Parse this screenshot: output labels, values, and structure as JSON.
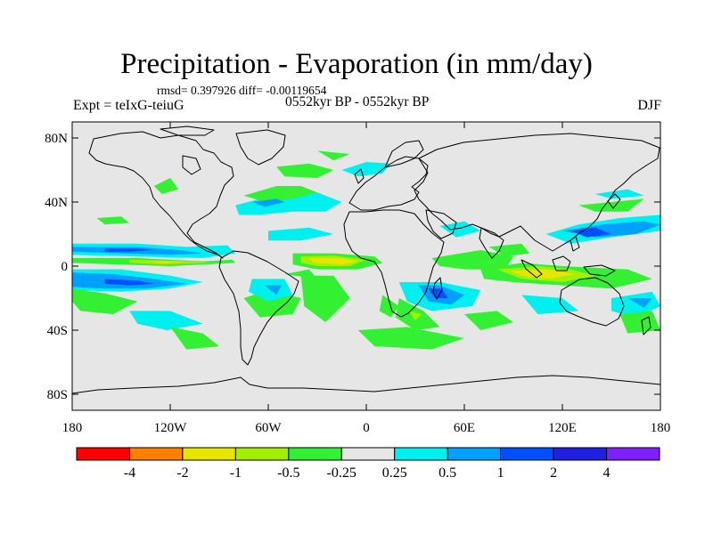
{
  "title": "Precipitation - Evaporation (in mm/day)",
  "stats_text": "rmsd= 0.397926 diff= -0.00119654",
  "experiment_label": "Expt = teIxG-teiuG",
  "period_label": "0552kyr BP - 0552kyr BP",
  "season_label": "DJF",
  "map": {
    "projection": "cylindrical equidistant",
    "lon_range": [
      -180,
      180
    ],
    "lat_range": [
      -90,
      90
    ],
    "ocean_background": "#e6e6e6",
    "coastline_color": "#000000",
    "lat_ticks": [
      {
        "value": 80,
        "label": "80N"
      },
      {
        "value": 40,
        "label": "40N"
      },
      {
        "value": 0,
        "label": "0"
      },
      {
        "value": -40,
        "label": "40S"
      },
      {
        "value": -80,
        "label": "80S"
      }
    ],
    "lon_ticks": [
      {
        "value": -180,
        "label": "180"
      },
      {
        "value": -120,
        "label": "120W"
      },
      {
        "value": -60,
        "label": "60W"
      },
      {
        "value": 0,
        "label": "0"
      },
      {
        "value": 60,
        "label": "60E"
      },
      {
        "value": 120,
        "label": "120E"
      },
      {
        "value": 180,
        "label": "180"
      }
    ]
  },
  "colorbar": {
    "colors": [
      "#ff0000",
      "#ff8000",
      "#e6e600",
      "#a0f000",
      "#33f033",
      "#e6e6e6",
      "#00f0f0",
      "#00a0ff",
      "#0050ff",
      "#2020e0",
      "#8020ff"
    ],
    "labels": [
      "-4",
      "-2",
      "-1",
      "-0.5",
      "-0.25",
      "0.25",
      "0.5",
      "1",
      "2",
      "4"
    ]
  },
  "field_regions": [
    {
      "color": "#00f0f0",
      "points": [
        [
          -180,
          14
        ],
        [
          -140,
          14
        ],
        [
          -110,
          12
        ],
        [
          -85,
          13
        ],
        [
          -80,
          8
        ],
        [
          -100,
          5
        ],
        [
          -140,
          6
        ],
        [
          -180,
          7
        ]
      ]
    },
    {
      "color": "#00a0ff",
      "points": [
        [
          -180,
          12
        ],
        [
          -140,
          12
        ],
        [
          -115,
          10
        ],
        [
          -100,
          8
        ],
        [
          -120,
          7
        ],
        [
          -150,
          8
        ],
        [
          -180,
          9
        ]
      ]
    },
    {
      "color": "#0050ff",
      "points": [
        [
          -160,
          11
        ],
        [
          -140,
          11
        ],
        [
          -130,
          10
        ],
        [
          -145,
          9
        ],
        [
          -160,
          9
        ]
      ]
    },
    {
      "color": "#33f033",
      "points": [
        [
          -180,
          5
        ],
        [
          -140,
          5
        ],
        [
          -100,
          3
        ],
        [
          -82,
          4
        ],
        [
          -80,
          2
        ],
        [
          -120,
          0
        ],
        [
          -150,
          1
        ],
        [
          -180,
          2
        ]
      ]
    },
    {
      "color": "#a0f000",
      "points": [
        [
          -145,
          4
        ],
        [
          -105,
          3
        ],
        [
          -95,
          2
        ],
        [
          -125,
          1
        ],
        [
          -145,
          2
        ]
      ]
    },
    {
      "color": "#e6e600",
      "points": [
        [
          -135,
          3.2
        ],
        [
          -110,
          2.6
        ],
        [
          -125,
          1.8
        ]
      ]
    },
    {
      "color": "#00f0f0",
      "points": [
        [
          -180,
          -2
        ],
        [
          -150,
          -2
        ],
        [
          -120,
          -6
        ],
        [
          -100,
          -10
        ],
        [
          -90,
          -8
        ],
        [
          -120,
          -14
        ],
        [
          -150,
          -16
        ],
        [
          -180,
          -15
        ]
      ]
    },
    {
      "color": "#00a0ff",
      "points": [
        [
          -180,
          -4
        ],
        [
          -155,
          -5
        ],
        [
          -130,
          -8
        ],
        [
          -110,
          -11
        ],
        [
          -135,
          -14
        ],
        [
          -160,
          -14
        ],
        [
          -180,
          -13
        ]
      ]
    },
    {
      "color": "#0050ff",
      "points": [
        [
          -160,
          -8
        ],
        [
          -140,
          -9
        ],
        [
          -130,
          -11
        ],
        [
          -145,
          -12
        ],
        [
          -160,
          -11
        ]
      ]
    },
    {
      "color": "#33f033",
      "points": [
        [
          -180,
          -14
        ],
        [
          -160,
          -17
        ],
        [
          -140,
          -22
        ],
        [
          -155,
          -30
        ],
        [
          -175,
          -28
        ],
        [
          -180,
          -22
        ]
      ]
    },
    {
      "color": "#00f0f0",
      "points": [
        [
          -145,
          -28
        ],
        [
          -120,
          -28
        ],
        [
          -100,
          -36
        ],
        [
          -122,
          -40
        ],
        [
          -140,
          -36
        ]
      ]
    },
    {
      "color": "#33f033",
      "points": [
        [
          -120,
          -38
        ],
        [
          -100,
          -42
        ],
        [
          -90,
          -50
        ],
        [
          -110,
          -52
        ]
      ]
    },
    {
      "color": "#33f033",
      "points": [
        [
          -165,
          30
        ],
        [
          -150,
          31
        ],
        [
          -145,
          27
        ],
        [
          -160,
          26
        ]
      ]
    },
    {
      "color": "#33f033",
      "points": [
        [
          -130,
          50
        ],
        [
          -120,
          55
        ],
        [
          -115,
          48
        ],
        [
          -125,
          45
        ]
      ]
    },
    {
      "color": "#00f0f0",
      "points": [
        [
          -80,
          38
        ],
        [
          -65,
          42
        ],
        [
          -50,
          44
        ],
        [
          -30,
          46
        ],
        [
          -15,
          40
        ],
        [
          -25,
          34
        ],
        [
          -45,
          34
        ],
        [
          -65,
          32
        ],
        [
          -78,
          32
        ]
      ]
    },
    {
      "color": "#33f033",
      "points": [
        [
          -75,
          44
        ],
        [
          -55,
          50
        ],
        [
          -40,
          50
        ],
        [
          -30,
          46
        ],
        [
          -45,
          42
        ],
        [
          -62,
          40
        ]
      ]
    },
    {
      "color": "#00a0ff",
      "points": [
        [
          -70,
          40
        ],
        [
          -55,
          42
        ],
        [
          -50,
          40
        ],
        [
          -62,
          37
        ]
      ]
    },
    {
      "color": "#33f033",
      "points": [
        [
          -55,
          62
        ],
        [
          -35,
          64
        ],
        [
          -20,
          60
        ],
        [
          -30,
          55
        ],
        [
          -50,
          56
        ]
      ]
    },
    {
      "color": "#00f0f0",
      "points": [
        [
          -15,
          60
        ],
        [
          0,
          65
        ],
        [
          15,
          64
        ],
        [
          10,
          58
        ],
        [
          -5,
          56
        ]
      ]
    },
    {
      "color": "#33f033",
      "points": [
        [
          -30,
          72
        ],
        [
          -10,
          70
        ],
        [
          -20,
          66
        ]
      ]
    },
    {
      "color": "#00f0f0",
      "points": [
        [
          -60,
          22
        ],
        [
          -35,
          24
        ],
        [
          -20,
          20
        ],
        [
          -40,
          16
        ],
        [
          -60,
          16
        ]
      ]
    },
    {
      "color": "#33f033",
      "points": [
        [
          -45,
          8
        ],
        [
          -20,
          8
        ],
        [
          5,
          6
        ],
        [
          10,
          2
        ],
        [
          -5,
          -2
        ],
        [
          -30,
          -2
        ],
        [
          -45,
          1
        ]
      ]
    },
    {
      "color": "#a0f000",
      "points": [
        [
          -40,
          6
        ],
        [
          -20,
          6.5
        ],
        [
          0,
          4
        ],
        [
          -10,
          0
        ],
        [
          -30,
          0
        ],
        [
          -40,
          2
        ]
      ]
    },
    {
      "color": "#e6e600",
      "points": [
        [
          -35,
          5
        ],
        [
          -15,
          5
        ],
        [
          -5,
          3
        ],
        [
          -15,
          1
        ],
        [
          -32,
          2
        ]
      ]
    },
    {
      "color": "#33f033",
      "points": [
        [
          -40,
          -6
        ],
        [
          -20,
          -6
        ],
        [
          -10,
          -20
        ],
        [
          -25,
          -35
        ],
        [
          -38,
          -25
        ]
      ]
    },
    {
      "color": "#33f033",
      "points": [
        [
          -50,
          -5
        ],
        [
          -35,
          -2
        ],
        [
          -30,
          -8
        ]
      ]
    },
    {
      "color": "#33f033",
      "points": [
        [
          -75,
          -20
        ],
        [
          -60,
          -15
        ],
        [
          -40,
          -20
        ],
        [
          -45,
          -30
        ],
        [
          -65,
          -32
        ]
      ]
    },
    {
      "color": "#00f0f0",
      "points": [
        [
          -70,
          -8
        ],
        [
          -50,
          -8
        ],
        [
          -45,
          -18
        ],
        [
          -60,
          -22
        ],
        [
          -72,
          -16
        ]
      ]
    },
    {
      "color": "#00a0ff",
      "points": [
        [
          -62,
          -12
        ],
        [
          -52,
          -12
        ],
        [
          -55,
          -18
        ]
      ]
    },
    {
      "color": "#33f033",
      "points": [
        [
          -5,
          -40
        ],
        [
          25,
          -38
        ],
        [
          60,
          -45
        ],
        [
          40,
          -52
        ],
        [
          5,
          -50
        ]
      ]
    },
    {
      "color": "#33f033",
      "points": [
        [
          10,
          -18
        ],
        [
          20,
          -25
        ],
        [
          15,
          -32
        ],
        [
          8,
          -28
        ]
      ]
    },
    {
      "color": "#00f0f0",
      "points": [
        [
          20,
          -10
        ],
        [
          45,
          -10
        ],
        [
          70,
          -15
        ],
        [
          65,
          -25
        ],
        [
          40,
          -28
        ],
        [
          25,
          -22
        ]
      ]
    },
    {
      "color": "#00a0ff",
      "points": [
        [
          32,
          -12
        ],
        [
          45,
          -12
        ],
        [
          60,
          -18
        ],
        [
          52,
          -24
        ],
        [
          38,
          -22
        ]
      ]
    },
    {
      "color": "#0050ff",
      "points": [
        [
          38,
          -14
        ],
        [
          46,
          -14
        ],
        [
          50,
          -20
        ],
        [
          42,
          -20
        ]
      ]
    },
    {
      "color": "#33f033",
      "points": [
        [
          20,
          -20
        ],
        [
          35,
          -28
        ],
        [
          45,
          -38
        ],
        [
          30,
          -40
        ],
        [
          18,
          -32
        ]
      ]
    },
    {
      "color": "#a0f000",
      "points": [
        [
          26,
          -28
        ],
        [
          34,
          -30
        ],
        [
          30,
          -34
        ]
      ]
    },
    {
      "color": "#33f033",
      "points": [
        [
          40,
          5
        ],
        [
          70,
          10
        ],
        [
          90,
          6
        ],
        [
          85,
          -2
        ],
        [
          60,
          -2
        ],
        [
          45,
          0
        ]
      ]
    },
    {
      "color": "#00f0f0",
      "points": [
        [
          45,
          25
        ],
        [
          60,
          28
        ],
        [
          70,
          22
        ],
        [
          55,
          18
        ]
      ]
    },
    {
      "color": "#33f033",
      "points": [
        [
          75,
          12
        ],
        [
          95,
          14
        ],
        [
          100,
          8
        ],
        [
          85,
          6
        ]
      ]
    },
    {
      "color": "#33f033",
      "points": [
        [
          70,
          -2
        ],
        [
          95,
          2
        ],
        [
          120,
          0
        ],
        [
          160,
          -2
        ],
        [
          175,
          -8
        ],
        [
          150,
          -14
        ],
        [
          120,
          -12
        ],
        [
          90,
          -10
        ],
        [
          72,
          -8
        ]
      ]
    },
    {
      "color": "#a0f000",
      "points": [
        [
          80,
          -2
        ],
        [
          105,
          0
        ],
        [
          125,
          -2
        ],
        [
          140,
          -6
        ],
        [
          120,
          -10
        ],
        [
          95,
          -8
        ]
      ]
    },
    {
      "color": "#e6e600",
      "points": [
        [
          88,
          -3
        ],
        [
          110,
          -2
        ],
        [
          128,
          -5
        ],
        [
          112,
          -8
        ],
        [
          95,
          -6
        ]
      ]
    },
    {
      "color": "#00f0f0",
      "points": [
        [
          110,
          20
        ],
        [
          130,
          26
        ],
        [
          155,
          30
        ],
        [
          180,
          32
        ],
        [
          180,
          22
        ],
        [
          150,
          18
        ],
        [
          125,
          14
        ]
      ]
    },
    {
      "color": "#00a0ff",
      "points": [
        [
          120,
          22
        ],
        [
          145,
          26
        ],
        [
          170,
          28
        ],
        [
          180,
          26
        ],
        [
          165,
          20
        ],
        [
          140,
          18
        ]
      ]
    },
    {
      "color": "#0050ff",
      "points": [
        [
          125,
          22
        ],
        [
          140,
          24
        ],
        [
          150,
          20
        ],
        [
          135,
          18
        ]
      ]
    },
    {
      "color": "#33f033",
      "points": [
        [
          130,
          38
        ],
        [
          150,
          40
        ],
        [
          170,
          42
        ],
        [
          160,
          34
        ],
        [
          140,
          34
        ]
      ]
    },
    {
      "color": "#00f0f0",
      "points": [
        [
          140,
          45
        ],
        [
          160,
          48
        ],
        [
          170,
          44
        ],
        [
          150,
          42
        ]
      ]
    },
    {
      "color": "#00f0f0",
      "points": [
        [
          150,
          -20
        ],
        [
          175,
          -16
        ],
        [
          180,
          -25
        ],
        [
          165,
          -32
        ],
        [
          150,
          -28
        ]
      ]
    },
    {
      "color": "#33f033",
      "points": [
        [
          155,
          -30
        ],
        [
          175,
          -28
        ],
        [
          180,
          -40
        ],
        [
          160,
          -42
        ]
      ]
    },
    {
      "color": "#00a0ff",
      "points": [
        [
          160,
          -20
        ],
        [
          175,
          -20
        ],
        [
          170,
          -26
        ]
      ]
    },
    {
      "color": "#00f0f0",
      "points": [
        [
          95,
          -18
        ],
        [
          120,
          -20
        ],
        [
          130,
          -28
        ],
        [
          105,
          -30
        ]
      ]
    },
    {
      "color": "#33f033",
      "points": [
        [
          60,
          -30
        ],
        [
          80,
          -28
        ],
        [
          90,
          -35
        ],
        [
          70,
          -40
        ]
      ]
    }
  ]
}
